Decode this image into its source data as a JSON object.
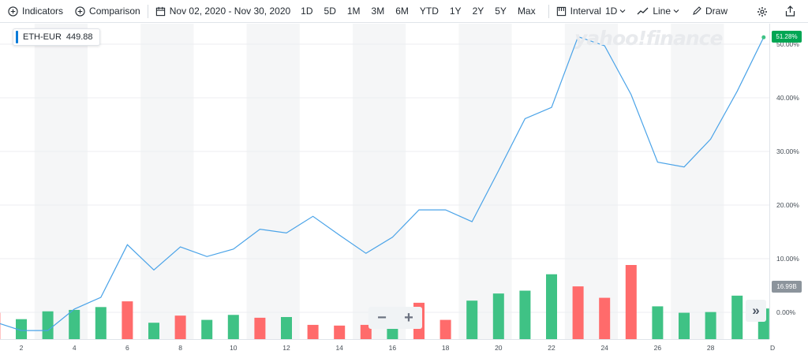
{
  "toolbar": {
    "indicators_label": "Indicators",
    "comparison_label": "Comparison",
    "date_range": "Nov 02, 2020 - Nov 30, 2020",
    "ranges": [
      "1D",
      "5D",
      "1M",
      "3M",
      "6M",
      "YTD",
      "1Y",
      "2Y",
      "5Y",
      "Max"
    ],
    "interval_label": "Interval",
    "interval_value": "1D",
    "chart_type_label": "Line",
    "draw_label": "Draw"
  },
  "ticker": {
    "symbol": "ETH-EUR",
    "price": "449.88",
    "accent": "#0b7bd8"
  },
  "watermark": "yahoo!finance",
  "current_change_label": "51.28%",
  "volume_label": "16.99B",
  "zoom": {
    "minus": "−",
    "plus": "+"
  },
  "forward_label": "»",
  "colors": {
    "line": "#4aa3e8",
    "up": "#3fc285",
    "down": "#ff6b6b",
    "badge_up": "#00a653",
    "badge_vol": "#8c949c"
  },
  "chart_data": {
    "type": "line",
    "x": [
      1,
      2,
      3,
      4,
      5,
      6,
      7,
      8,
      9,
      10,
      11,
      12,
      13,
      14,
      15,
      16,
      17,
      18,
      19,
      20,
      21,
      22,
      23,
      24,
      25,
      26,
      27,
      28,
      29,
      30
    ],
    "x_ticks": [
      2,
      4,
      6,
      8,
      10,
      12,
      14,
      16,
      18,
      20,
      22,
      24,
      26,
      28
    ],
    "x_last_partial": "D",
    "series": [
      {
        "values": [
          -1.8,
          -3.4,
          -3.4,
          0.6,
          2.8,
          12.6,
          7.9,
          12.2,
          10.4,
          11.8,
          15.5,
          14.8,
          17.9,
          14.4,
          11.0,
          14.0,
          19.1,
          19.1,
          16.9,
          26.4,
          36.1,
          38.2,
          51.4,
          49.7,
          40.6,
          28.0,
          27.1,
          32.3,
          41.2,
          51.28
        ]
      }
    ],
    "volume": {
      "values": [
        3.7,
        2.8,
        3.9,
        4.1,
        4.5,
        5.3,
        2.3,
        3.3,
        2.7,
        3.4,
        3.0,
        3.1,
        2.0,
        1.9,
        2.0,
        3.6,
        5.1,
        2.7,
        5.4,
        6.4,
        6.8,
        9.1,
        7.4,
        5.8,
        10.4,
        4.6,
        3.7,
        3.8,
        6.1,
        4.3
      ],
      "direction": [
        "down",
        "up",
        "up",
        "up",
        "up",
        "down",
        "up",
        "down",
        "up",
        "up",
        "down",
        "up",
        "down",
        "down",
        "down",
        "up",
        "down",
        "down",
        "up",
        "up",
        "up",
        "up",
        "down",
        "down",
        "down",
        "up",
        "up",
        "up",
        "up",
        "up"
      ]
    },
    "y_ticks": [
      0,
      10,
      20,
      30,
      40,
      50
    ],
    "y_tick_labels": [
      "0.00%",
      "10.00%",
      "20.00%",
      "30.00%",
      "40.00%",
      "50.00%"
    ],
    "ylim": [
      -5,
      54
    ],
    "grid": true
  }
}
